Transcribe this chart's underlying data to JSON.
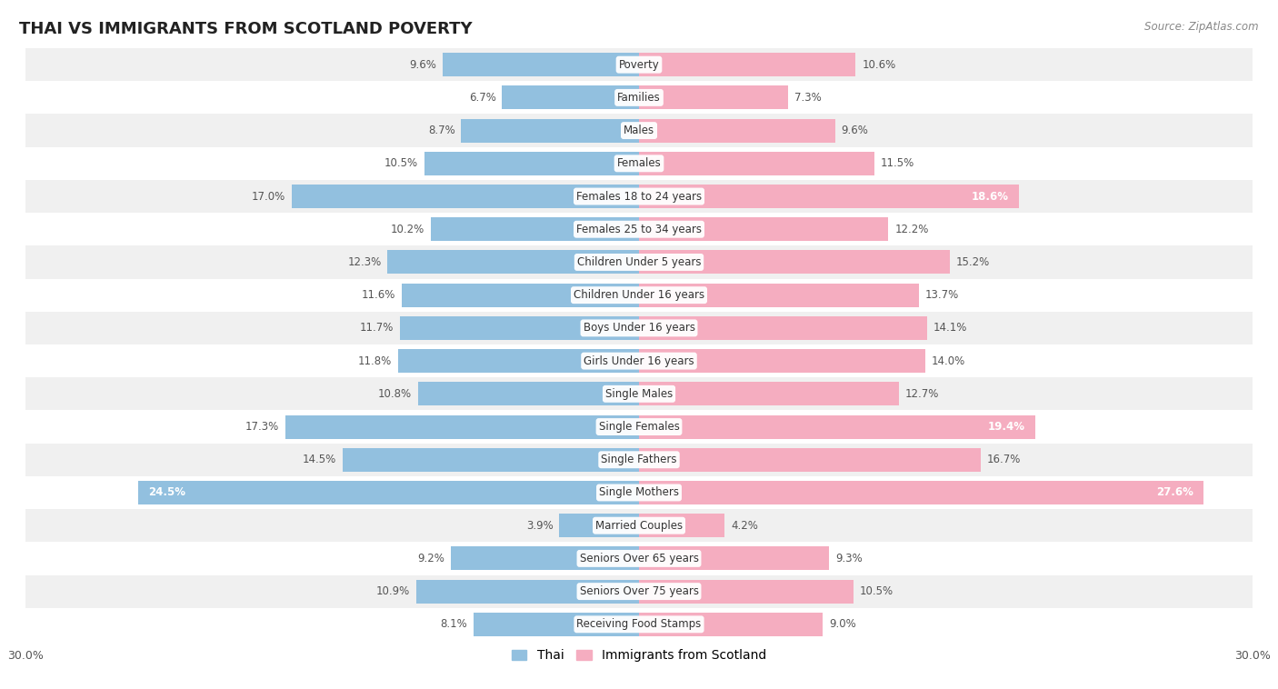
{
  "title": "THAI VS IMMIGRANTS FROM SCOTLAND POVERTY",
  "source": "Source: ZipAtlas.com",
  "categories": [
    "Poverty",
    "Families",
    "Males",
    "Females",
    "Females 18 to 24 years",
    "Females 25 to 34 years",
    "Children Under 5 years",
    "Children Under 16 years",
    "Boys Under 16 years",
    "Girls Under 16 years",
    "Single Males",
    "Single Females",
    "Single Fathers",
    "Single Mothers",
    "Married Couples",
    "Seniors Over 65 years",
    "Seniors Over 75 years",
    "Receiving Food Stamps"
  ],
  "thai_values": [
    9.6,
    6.7,
    8.7,
    10.5,
    17.0,
    10.2,
    12.3,
    11.6,
    11.7,
    11.8,
    10.8,
    17.3,
    14.5,
    24.5,
    3.9,
    9.2,
    10.9,
    8.1
  ],
  "scotland_values": [
    10.6,
    7.3,
    9.6,
    11.5,
    18.6,
    12.2,
    15.2,
    13.7,
    14.1,
    14.0,
    12.7,
    19.4,
    16.7,
    27.6,
    4.2,
    9.3,
    10.5,
    9.0
  ],
  "thai_color": "#92c0df",
  "scotland_color": "#f5adc0",
  "thai_label": "Thai",
  "scotland_label": "Immigrants from Scotland",
  "axis_max": 30.0,
  "background_color": "#ffffff",
  "row_odd_color": "#f0f0f0",
  "row_even_color": "#ffffff",
  "title_fontsize": 13,
  "label_fontsize": 8.5,
  "value_fontsize": 8.5,
  "bar_height": 0.72
}
